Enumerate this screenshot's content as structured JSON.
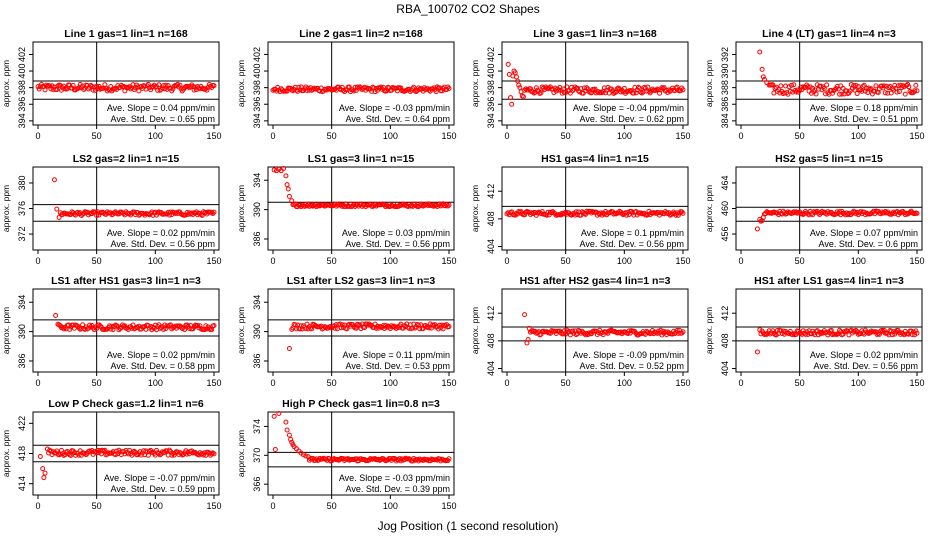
{
  "title": "RBA_100702  CO2 Shapes",
  "xlabel": "Jog Position (1 second resolution)",
  "colors": {
    "points": "#ff0000",
    "axes": "#000000"
  },
  "chart_data": [
    {
      "type": "scatter",
      "title": "Line 1 gas=1 lin=1 n=168",
      "ylabel": "approx. ppm",
      "xlim": [
        0,
        150
      ],
      "ylim": [
        393.5,
        403.5
      ],
      "xticks": [
        "0",
        "50",
        "100",
        "150"
      ],
      "yticks": [
        "394",
        "396",
        "398",
        "400",
        "402"
      ],
      "hlines": [
        398.8,
        396.6
      ],
      "vline": 50,
      "start": 0,
      "base": 398.0,
      "noise": 0.4,
      "transient": [],
      "slope_text": "Ave. Slope = 0.04  ppm/min",
      "std_text": "Ave. Std. Dev. = 0.65  ppm"
    },
    {
      "type": "scatter",
      "title": "Line 2 gas=1 lin=2 n=168",
      "ylabel": "approx. ppm",
      "xlim": [
        0,
        150
      ],
      "ylim": [
        393.5,
        403.5
      ],
      "xticks": [
        "0",
        "50",
        "100",
        "150"
      ],
      "yticks": [
        "394",
        "396",
        "398",
        "400",
        "402"
      ],
      "hlines": [],
      "vline": 50,
      "start": 0,
      "base": 397.8,
      "noise": 0.3,
      "transient": [],
      "slope_text": "Ave. Slope = -0.03  ppm/min",
      "std_text": "Ave. Std. Dev. = 0.64  ppm"
    },
    {
      "type": "scatter",
      "title": "Line 3 gas=1 lin=3 n=168",
      "ylabel": "approx. ppm",
      "xlim": [
        0,
        150
      ],
      "ylim": [
        393.5,
        403.5
      ],
      "xticks": [
        "0",
        "50",
        "100",
        "150"
      ],
      "yticks": [
        "394",
        "396",
        "398",
        "400",
        "402"
      ],
      "hlines": [
        398.8,
        396.6
      ],
      "vline": 50,
      "start": 0,
      "base": 397.7,
      "noise": 0.4,
      "transient": [
        [
          1,
          400.8
        ],
        [
          2,
          399.6
        ],
        [
          3,
          396.8
        ],
        [
          4,
          396.0
        ],
        [
          5,
          399.4
        ],
        [
          6,
          400.0
        ],
        [
          7,
          399.8
        ],
        [
          8,
          399.3
        ],
        [
          9,
          398.8
        ],
        [
          10,
          398.3
        ],
        [
          11,
          398.0
        ],
        [
          12,
          397.5
        ],
        [
          13,
          397.0
        ],
        [
          14,
          396.9
        ]
      ],
      "slope_text": "Ave. Slope = -0.04  ppm/min",
      "std_text": "Ave. Std. Dev. = 0.62  ppm"
    },
    {
      "type": "scatter",
      "title": "Line 4 (LT) gas=1 lin=4 n=3",
      "ylabel": "approx. ppm",
      "xlim": [
        0,
        150
      ],
      "ylim": [
        383.5,
        393.5
      ],
      "xticks": [
        "0",
        "50",
        "100",
        "150"
      ],
      "yticks": [
        "384",
        "386",
        "388",
        "390",
        "392"
      ],
      "hlines": [
        388.8,
        386.6
      ],
      "vline": 50,
      "start": 14,
      "base": 387.8,
      "noise": 0.6,
      "transient": [
        [
          16,
          392.3
        ],
        [
          18,
          390.2
        ],
        [
          19,
          389.3
        ],
        [
          20,
          389.0
        ],
        [
          22,
          388.6
        ],
        [
          24,
          388.3
        ]
      ],
      "slope_text": "Ave. Slope = 0.18  ppm/min",
      "std_text": "Ave. Std. Dev. = 0.51  ppm"
    },
    {
      "type": "scatter",
      "title": "LS2 gas=2 lin=1 n=15",
      "ylabel": "approx. ppm",
      "xlim": [
        0,
        150
      ],
      "ylim": [
        369.5,
        382.5
      ],
      "xticks": [
        "0",
        "50",
        "100",
        "150"
      ],
      "yticks": [
        "372",
        "376",
        "380"
      ],
      "hlines": [
        376.6,
        374.0
      ],
      "vline": 50,
      "start": 14,
      "base": 375.2,
      "noise": 0.3,
      "transient": [
        [
          14,
          380.5
        ],
        [
          16,
          375.9
        ],
        [
          18,
          374.6
        ]
      ],
      "slope_text": "Ave. Slope = 0.02  ppm/min",
      "std_text": "Ave. Std. Dev. = 0.56  ppm"
    },
    {
      "type": "scatter",
      "title": "LS1 gas=3 lin=1 n=15",
      "ylabel": "approx. ppm",
      "xlim": [
        0,
        150
      ],
      "ylim": [
        384.5,
        395.8
      ],
      "xticks": [
        "0",
        "50",
        "100",
        "150"
      ],
      "yticks": [
        "386",
        "390",
        "394"
      ],
      "hlines": [
        391.0
      ],
      "vline": 50,
      "start": 0,
      "base": 390.6,
      "noise": 0.2,
      "transient": [
        [
          1,
          395.4
        ],
        [
          3,
          395.3
        ],
        [
          5,
          395.5
        ],
        [
          7,
          395.3
        ],
        [
          9,
          395.6
        ],
        [
          11,
          394.6
        ],
        [
          12,
          393.4
        ],
        [
          13,
          392.8
        ],
        [
          14,
          391.8
        ],
        [
          16,
          391.2
        ]
      ],
      "slope_text": "Ave. Slope = 0.03  ppm/min",
      "std_text": "Ave. Std. Dev. = 0.56  ppm"
    },
    {
      "type": "scatter",
      "title": "HS1 gas=4 lin=1 n=15",
      "ylabel": "approx. ppm",
      "xlim": [
        0,
        150
      ],
      "ylim": [
        403.5,
        415.5
      ],
      "xticks": [
        "0",
        "50",
        "100",
        "150"
      ],
      "yticks": [
        "404",
        "408",
        "412"
      ],
      "hlines": [
        409.8
      ],
      "vline": 50,
      "start": 0,
      "base": 408.8,
      "noise": 0.3,
      "transient": [],
      "slope_text": "Ave. Slope = 0.1  ppm/min",
      "std_text": "Ave. Std. Dev. = 0.56  ppm"
    },
    {
      "type": "scatter",
      "title": "HS2 gas=5 lin=1 n=15",
      "ylabel": "approx. ppm",
      "xlim": [
        0,
        150
      ],
      "ylim": [
        453.5,
        466.5
      ],
      "xticks": [
        "0",
        "50",
        "100",
        "150"
      ],
      "yticks": [
        "456",
        "460",
        "464"
      ],
      "hlines": [
        460.2,
        458.0
      ],
      "vline": 50,
      "start": 14,
      "base": 459.3,
      "noise": 0.3,
      "transient": [
        [
          14,
          456.8
        ],
        [
          16,
          458.3
        ],
        [
          17,
          458.0
        ],
        [
          18,
          458.1
        ],
        [
          19,
          458.6
        ]
      ],
      "slope_text": "Ave. Slope = 0.07  ppm/min",
      "std_text": "Ave. Std. Dev. = 0.6  ppm"
    },
    {
      "type": "scatter",
      "title": "LS1 after HS1 gas=3 lin=1 n=3",
      "ylabel": "approx. ppm",
      "xlim": [
        0,
        150
      ],
      "ylim": [
        384.5,
        395.8
      ],
      "xticks": [
        "0",
        "50",
        "100",
        "150"
      ],
      "yticks": [
        "386",
        "390",
        "394"
      ],
      "hlines": [
        391.6,
        389.4
      ],
      "vline": 50,
      "start": 14,
      "base": 390.6,
      "noise": 0.35,
      "transient": [
        [
          15,
          392.2
        ],
        [
          17,
          391.0
        ]
      ],
      "slope_text": "Ave. Slope = 0.02  ppm/min",
      "std_text": "Ave. Std. Dev. = 0.58  ppm"
    },
    {
      "type": "scatter",
      "title": "LS1 after LS2 gas=3 lin=1 n=3",
      "ylabel": "approx. ppm",
      "xlim": [
        0,
        150
      ],
      "ylim": [
        384.5,
        395.8
      ],
      "xticks": [
        "0",
        "50",
        "100",
        "150"
      ],
      "yticks": [
        "386",
        "390",
        "394"
      ],
      "hlines": [
        391.6,
        389.4
      ],
      "vline": 50,
      "start": 14,
      "base": 390.7,
      "noise": 0.35,
      "transient": [
        [
          14,
          387.7
        ],
        [
          16,
          390.3
        ]
      ],
      "slope_text": "Ave. Slope = 0.11  ppm/min",
      "std_text": "Ave. Std. Dev. = 0.53  ppm"
    },
    {
      "type": "scatter",
      "title": "HS1 after HS2 gas=4 lin=1 n=3",
      "ylabel": "approx. ppm",
      "xlim": [
        0,
        150
      ],
      "ylim": [
        403.5,
        415.5
      ],
      "xticks": [
        "0",
        "50",
        "100",
        "150"
      ],
      "yticks": [
        "404",
        "408",
        "412"
      ],
      "hlines": [
        410.0,
        408.0
      ],
      "vline": 50,
      "start": 14,
      "base": 409.2,
      "noise": 0.35,
      "transient": [
        [
          15,
          411.8
        ],
        [
          17,
          407.7
        ],
        [
          18,
          408.2
        ],
        [
          19,
          409.8
        ]
      ],
      "slope_text": "Ave. Slope = -0.09  ppm/min",
      "std_text": "Ave. Std. Dev. = 0.52  ppm"
    },
    {
      "type": "scatter",
      "title": "HS1 after LS1 gas=4 lin=1 n=3",
      "ylabel": "approx. ppm",
      "xlim": [
        0,
        150
      ],
      "ylim": [
        403.5,
        415.5
      ],
      "xticks": [
        "0",
        "50",
        "100",
        "150"
      ],
      "yticks": [
        "404",
        "408",
        "412"
      ],
      "hlines": [
        410.0,
        408.0
      ],
      "vline": 50,
      "start": 14,
      "base": 409.2,
      "noise": 0.35,
      "transient": [
        [
          14,
          406.4
        ],
        [
          16,
          409.6
        ]
      ],
      "slope_text": "Ave. Slope = 0.02  ppm/min",
      "std_text": "Ave. Std. Dev. = 0.56  ppm"
    },
    {
      "type": "scatter",
      "title": "Low P Check gas=1.2 lin=1 n=6",
      "ylabel": "approx. ppm",
      "xlim": [
        0,
        150
      ],
      "ylim": [
        412.5,
        423.5
      ],
      "xticks": [
        "0",
        "50",
        "100",
        "150"
      ],
      "yticks": [
        "414",
        "418",
        "422"
      ],
      "hlines": [
        419.1,
        416.9
      ],
      "vline": 50,
      "start": 0,
      "base": 418.1,
      "noise": 0.35,
      "transient": [
        [
          2,
          417.6
        ],
        [
          4,
          416.0
        ],
        [
          5,
          414.8
        ],
        [
          6,
          415.4
        ],
        [
          8,
          418.6
        ]
      ],
      "slope_text": "Ave. Slope = -0.07  ppm/min",
      "std_text": "Ave. Std. Dev. = 0.59  ppm"
    },
    {
      "type": "scatter",
      "title": "High P Check gas=1 lin=0.8 n=3",
      "ylabel": "approx. ppm",
      "xlim": [
        0,
        150
      ],
      "ylim": [
        364.5,
        376.0
      ],
      "xticks": [
        "0",
        "50",
        "100",
        "150"
      ],
      "yticks": [
        "366",
        "370",
        "374"
      ],
      "hlines": [
        370.4,
        368.4
      ],
      "vline": 50,
      "start": 0,
      "base": 369.4,
      "noise": 0.2,
      "transient": [
        [
          1,
          375.4
        ],
        [
          2,
          370.8
        ],
        [
          5,
          375.8
        ],
        [
          11,
          374.6
        ],
        [
          12,
          373.5
        ],
        [
          14,
          372.8
        ],
        [
          15,
          372.2
        ],
        [
          16,
          371.8
        ],
        [
          17,
          371.5
        ],
        [
          18,
          371.2
        ],
        [
          20,
          370.9
        ],
        [
          22,
          370.6
        ],
        [
          24,
          370.3
        ],
        [
          26,
          370.1
        ],
        [
          28,
          369.9
        ],
        [
          30,
          369.8
        ]
      ],
      "slope_text": "Ave. Slope = -0.03  ppm/min",
      "std_text": "Ave. Std. Dev. = 0.39  ppm"
    }
  ]
}
